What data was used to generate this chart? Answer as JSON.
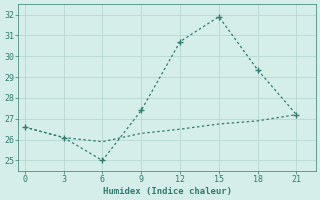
{
  "xlabel": "Humidex (Indice chaleur)",
  "x": [
    0,
    3,
    6,
    9,
    12,
    15,
    18,
    21
  ],
  "y_solid": [
    26.6,
    26.1,
    25.0,
    27.4,
    30.7,
    31.9,
    29.35,
    27.2
  ],
  "y_dashed": [
    26.6,
    26.1,
    25.9,
    26.3,
    26.5,
    26.75,
    26.9,
    27.2
  ],
  "xlim": [
    -0.5,
    22.5
  ],
  "ylim": [
    24.5,
    32.5
  ],
  "yticks": [
    25,
    26,
    27,
    28,
    29,
    30,
    31,
    32
  ],
  "xticks": [
    0,
    3,
    6,
    9,
    12,
    15,
    18,
    21
  ],
  "line_color": "#2e7d6e",
  "bg_color": "#d6eeea",
  "grid_color": "#b8d8d2",
  "marker": "+",
  "marker_size": 5,
  "line_width": 0.9
}
